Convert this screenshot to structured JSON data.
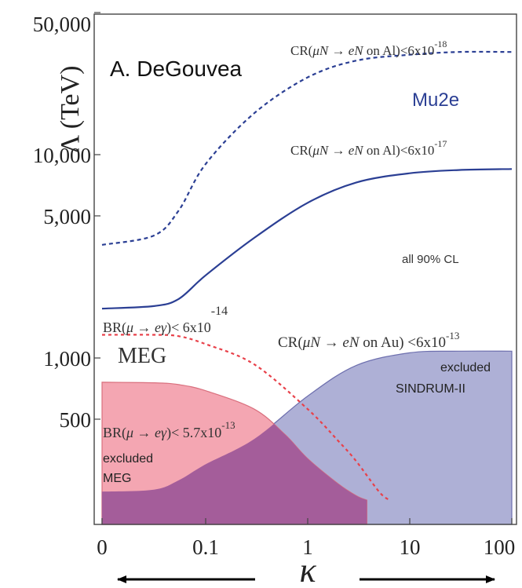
{
  "chart_data": {
    "type": "area",
    "author_label": "A. DeGouvea",
    "ylabel": "Λ (TeV)",
    "xlabel": "κ",
    "y_scale": "log",
    "ylim": [
      200,
      50000
    ],
    "xlim": [
      0,
      100
    ],
    "x_ticks": [
      "0",
      "0.1",
      "1",
      "10",
      "100"
    ],
    "y_ticks": [
      {
        "label": "50,000",
        "value": 50000
      },
      {
        "label": "10,000",
        "value": 10000
      },
      {
        "label": "5,000",
        "value": 5000
      },
      {
        "label": "1,000",
        "value": 1000
      },
      {
        "label": "500",
        "value": 500
      }
    ],
    "grid": false,
    "colors": {
      "mu2e": "#2b3f94",
      "meg": "#e8414a",
      "meg_fill": "#f4a6b2",
      "sindrum_fill": "#aeb0d6",
      "overlap_fill": "#a45d9a"
    },
    "series": [
      {
        "name": "Mu2e (6x10^-18 on Al)",
        "style": "dashed",
        "x": [
          0,
          0.01,
          0.03,
          0.1,
          0.3,
          1,
          3,
          10,
          30,
          100
        ],
        "y": [
          3600,
          4000,
          5300,
          9000,
          16000,
          24000,
          29000,
          31000,
          32000,
          32000
        ]
      },
      {
        "name": "Mu2e (6x10^-17 on Al)",
        "style": "solid",
        "x": [
          0,
          0.01,
          0.03,
          0.1,
          0.3,
          1,
          3,
          10,
          30,
          100
        ],
        "y": [
          1750,
          1800,
          1950,
          2550,
          3900,
          5800,
          7300,
          8100,
          8400,
          8500
        ]
      },
      {
        "name": "MEG (6x10^-14)",
        "style": "dashed",
        "x": [
          0,
          0.01,
          0.03,
          0.1,
          0.3,
          1,
          2,
          3,
          5,
          6.3
        ],
        "y": [
          1300,
          1300,
          1280,
          1170,
          930,
          560,
          390,
          310,
          220,
          200
        ]
      },
      {
        "name": "excluded MEG (5.7x10^-13)",
        "style": "filled",
        "x": [
          0,
          0.01,
          0.03,
          0.1,
          0.3,
          0.6,
          1,
          2,
          3,
          3.8
        ],
        "y": [
          760,
          755,
          740,
          690,
          560,
          420,
          320,
          240,
          210,
          200
        ]
      },
      {
        "name": "excluded SINDRUM-II (6x10^-13 on Au)",
        "style": "filled",
        "x": [
          0,
          0.01,
          0.03,
          0.1,
          0.3,
          1,
          3,
          10,
          30,
          100
        ],
        "y": [
          220,
          225,
          250,
          300,
          400,
          650,
          920,
          1060,
          1080,
          1080
        ]
      }
    ],
    "annotations": {
      "cr_al_18": {
        "prefix": "CR(",
        "math": "μN → eN",
        "suffix": " on Al)<6x10",
        "exp": "-18"
      },
      "mu2e_label": "Mu2e",
      "cr_al_17": {
        "prefix": "CR(",
        "math": "μN → eN",
        "suffix": " on Al)<6x10",
        "exp": "-17"
      },
      "cl_note": "all 90% CL",
      "br_meg_future": {
        "prefix": "BR(",
        "math": "μ → eγ",
        "suffix": ")< 6x10",
        "exp": "-14"
      },
      "meg_label": "MEG",
      "cr_au": {
        "prefix": "CR(",
        "math": "μN → eN",
        "suffix": " on Au) <6x10",
        "exp": "-13"
      },
      "sindrum_excluded": "excluded",
      "sindrum_label": "SINDRUM-II",
      "br_meg_excluded": {
        "prefix": "BR(",
        "math": "μ → eγ",
        "suffix": ")< 5.7x10",
        "exp": "-13"
      },
      "meg_excluded": "excluded",
      "meg_excluded_label": "MEG"
    }
  }
}
